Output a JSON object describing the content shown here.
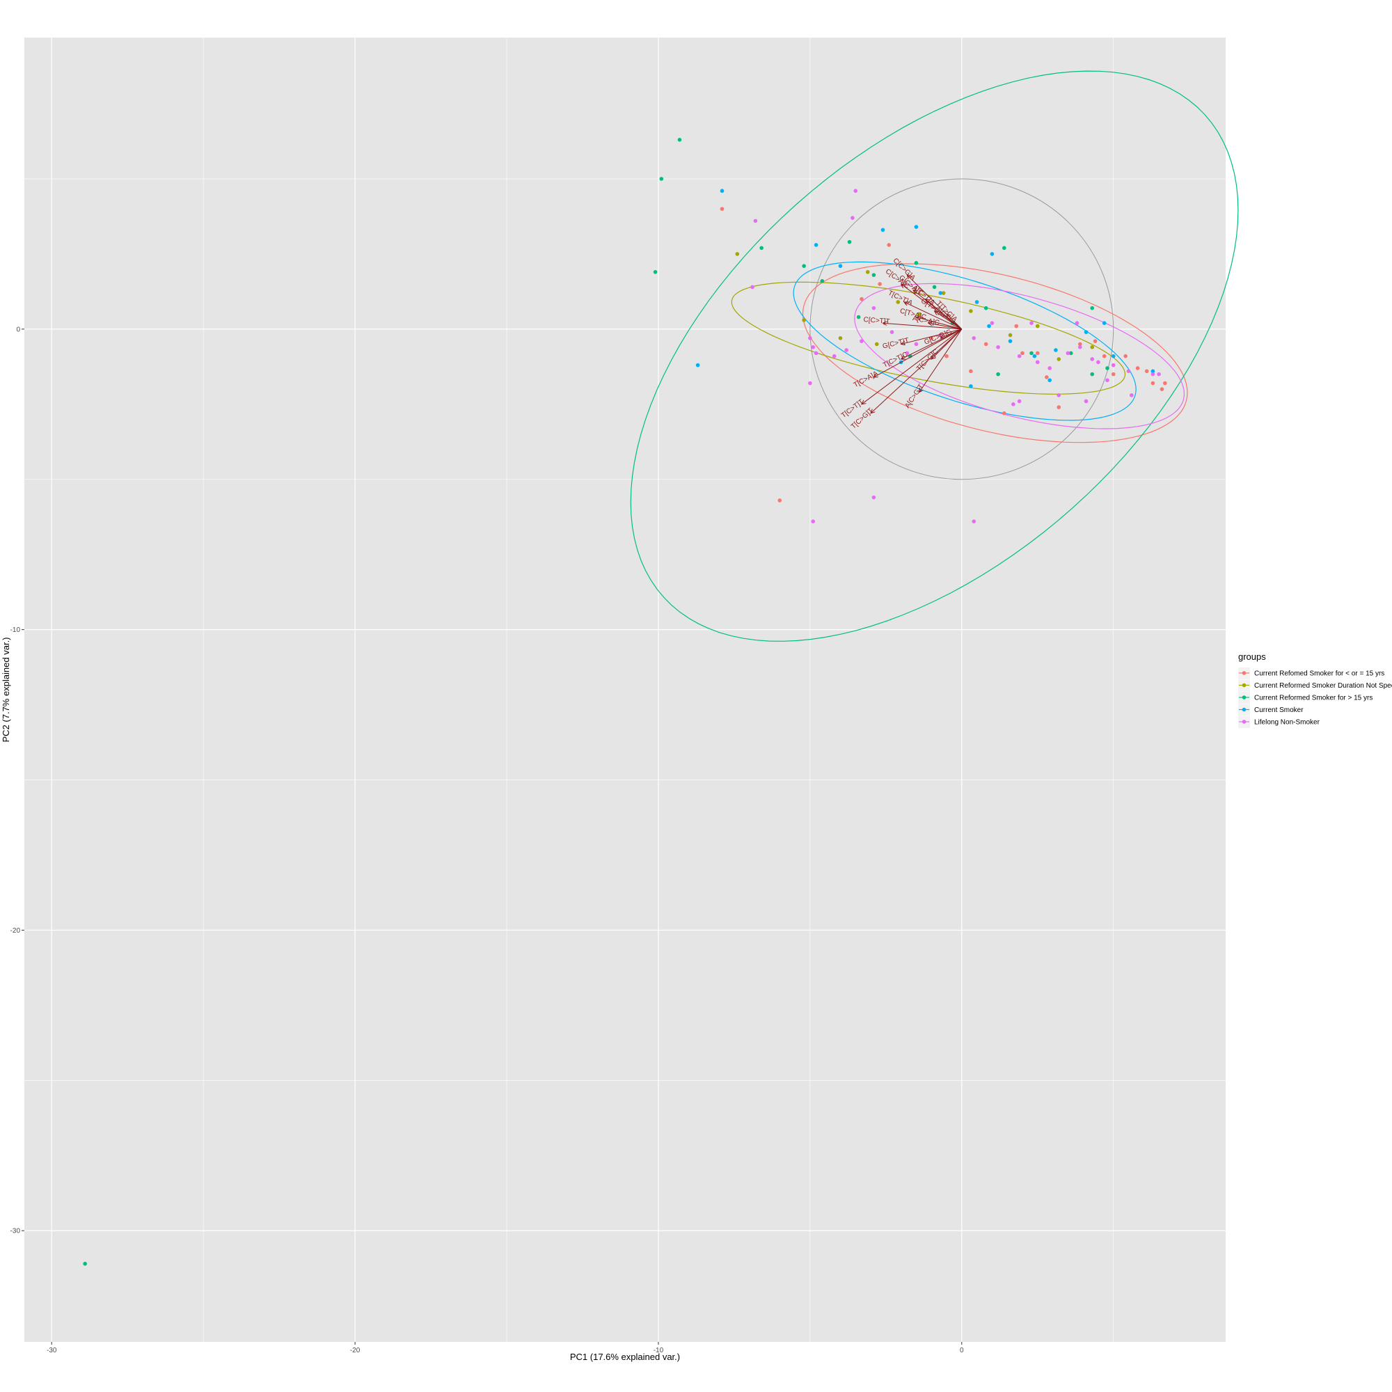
{
  "chart_data": {
    "type": "scatter",
    "title": "",
    "xlabel": "PC1 (17.6% explained var.)",
    "ylabel": "PC2 (7.7% explained var.)",
    "xlim": [
      -30.9,
      8.7
    ],
    "ylim": [
      -33.7,
      9.7
    ],
    "xticks": [
      -30,
      -20,
      -10,
      0
    ],
    "yticks": [
      0,
      -10,
      -20,
      -30
    ],
    "grid": true,
    "legend": {
      "title": "groups",
      "placement": "right"
    },
    "series": [
      {
        "name": "Current Refomed Smoker for < or = 15 yrs",
        "color": "#F8766D",
        "points": [
          [
            -7.9,
            4.0
          ],
          [
            -6.0,
            -5.7
          ],
          [
            -2.4,
            2.8
          ],
          [
            -2.7,
            1.5
          ],
          [
            -0.5,
            -0.9
          ],
          [
            1.4,
            -2.8
          ],
          [
            3.2,
            -2.6
          ],
          [
            4.7,
            -0.9
          ],
          [
            5.8,
            -1.3
          ],
          [
            6.3,
            -1.8
          ],
          [
            6.6,
            -2.0
          ],
          [
            6.7,
            -1.8
          ],
          [
            5.4,
            -0.9
          ],
          [
            3.9,
            -0.5
          ],
          [
            2.5,
            -0.8
          ],
          [
            1.8,
            0.1
          ],
          [
            0.8,
            -0.5
          ],
          [
            -1.0,
            -0.3
          ],
          [
            -3.3,
            1.0
          ],
          [
            0.3,
            -1.4
          ],
          [
            2.8,
            -1.6
          ],
          [
            4.4,
            -0.4
          ],
          [
            5.0,
            -1.5
          ],
          [
            6.1,
            -1.4
          ],
          [
            2.0,
            -0.8
          ]
        ]
      },
      {
        "name": "Current Reformed Smoker Duration Not Specified",
        "color": "#A3A500",
        "points": [
          [
            -7.4,
            2.5
          ],
          [
            -5.2,
            0.3
          ],
          [
            -2.8,
            -0.5
          ],
          [
            -2.1,
            0.9
          ],
          [
            -1.4,
            0.5
          ],
          [
            -0.6,
            1.2
          ],
          [
            0.3,
            0.6
          ],
          [
            1.6,
            -0.2
          ],
          [
            2.5,
            0.1
          ],
          [
            4.3,
            -0.6
          ],
          [
            3.2,
            -1.0
          ],
          [
            -4.0,
            -0.3
          ],
          [
            -3.1,
            1.9
          ]
        ]
      },
      {
        "name": "Current Reformed Smoker for > 15 yrs",
        "color": "#00BF7D",
        "points": [
          [
            -9.3,
            6.3
          ],
          [
            -9.9,
            5.0
          ],
          [
            -10.1,
            1.9
          ],
          [
            -6.6,
            2.7
          ],
          [
            -5.2,
            2.1
          ],
          [
            -4.6,
            1.6
          ],
          [
            -3.7,
            2.9
          ],
          [
            -3.4,
            0.4
          ],
          [
            -2.9,
            1.8
          ],
          [
            -1.5,
            2.2
          ],
          [
            -0.9,
            1.4
          ],
          [
            0.8,
            0.7
          ],
          [
            1.4,
            2.7
          ],
          [
            2.3,
            -0.8
          ],
          [
            4.3,
            -1.5
          ],
          [
            4.8,
            -1.3
          ],
          [
            1.2,
            -1.5
          ],
          [
            -1.7,
            -0.9
          ],
          [
            3.6,
            -0.8
          ],
          [
            -28.9,
            -31.1
          ],
          [
            4.3,
            0.7
          ],
          [
            -0.3,
            0.2
          ]
        ]
      },
      {
        "name": "Current Smoker",
        "color": "#00B0F6",
        "points": [
          [
            -7.9,
            4.6
          ],
          [
            -8.7,
            -1.2
          ],
          [
            -4.8,
            2.8
          ],
          [
            -4.0,
            2.1
          ],
          [
            -2.6,
            3.3
          ],
          [
            -1.5,
            3.4
          ],
          [
            -0.7,
            1.2
          ],
          [
            0.5,
            0.9
          ],
          [
            0.9,
            0.1
          ],
          [
            1.6,
            -0.4
          ],
          [
            2.4,
            -0.9
          ],
          [
            3.1,
            -0.7
          ],
          [
            4.1,
            -0.1
          ],
          [
            5.0,
            -0.9
          ],
          [
            6.3,
            -1.4
          ],
          [
            1.0,
            2.5
          ],
          [
            -2.0,
            -1.1
          ],
          [
            0.3,
            -1.9
          ],
          [
            2.9,
            -1.7
          ],
          [
            4.7,
            0.2
          ]
        ]
      },
      {
        "name": "Lifelong Non-Smoker",
        "color": "#E76BF3",
        "points": [
          [
            -6.8,
            3.6
          ],
          [
            -3.5,
            4.6
          ],
          [
            -3.6,
            3.7
          ],
          [
            -2.9,
            -5.6
          ],
          [
            -6.9,
            1.4
          ],
          [
            -5.0,
            -0.3
          ],
          [
            -4.9,
            -0.6
          ],
          [
            -4.8,
            -0.8
          ],
          [
            -5.0,
            -1.8
          ],
          [
            -4.2,
            -0.9
          ],
          [
            -3.8,
            -0.7
          ],
          [
            -3.3,
            -0.4
          ],
          [
            -2.9,
            0.7
          ],
          [
            -2.3,
            -0.1
          ],
          [
            -1.5,
            -0.5
          ],
          [
            -0.7,
            -0.2
          ],
          [
            0.4,
            -0.3
          ],
          [
            1.2,
            -0.6
          ],
          [
            1.9,
            -0.9
          ],
          [
            2.5,
            -1.1
          ],
          [
            2.9,
            -1.3
          ],
          [
            3.5,
            -0.8
          ],
          [
            3.9,
            -0.6
          ],
          [
            4.3,
            -1.0
          ],
          [
            4.5,
            -1.1
          ],
          [
            5.0,
            -1.2
          ],
          [
            5.5,
            -1.4
          ],
          [
            6.3,
            -1.5
          ],
          [
            6.5,
            -1.5
          ],
          [
            3.2,
            -2.2
          ],
          [
            1.7,
            -2.5
          ],
          [
            1.9,
            -2.4
          ],
          [
            4.1,
            -2.4
          ],
          [
            0.4,
            -6.4
          ],
          [
            -4.9,
            -6.4
          ],
          [
            1.0,
            0.2
          ],
          [
            2.3,
            0.2
          ],
          [
            3.8,
            0.2
          ],
          [
            -1.8,
            -0.8
          ],
          [
            5.6,
            -2.2
          ],
          [
            4.8,
            -1.7
          ]
        ]
      }
    ],
    "ellipses": [
      {
        "series": "Current Refomed Smoker for < or = 15 yrs",
        "center": [
          1.1,
          -0.8
        ],
        "rx": 6.5,
        "ry": 2.6,
        "angle_deg": -14
      },
      {
        "series": "Current Reformed Smoker Duration Not Specified",
        "center": [
          -1.1,
          -0.3
        ],
        "rx": 6.6,
        "ry": 1.4,
        "angle_deg": -11
      },
      {
        "series": "Current Reformed Smoker for > 15 yrs",
        "center": [
          -0.9,
          -0.9
        ],
        "rx": 12.0,
        "ry": 6.8,
        "angle_deg": 42
      },
      {
        "series": "Current Smoker",
        "center": [
          0.1,
          -0.4
        ],
        "rx": 5.9,
        "ry": 2.0,
        "angle_deg": -18
      },
      {
        "series": "Lifelong Non-Smoker",
        "center": [
          1.9,
          -0.9
        ],
        "rx": 5.6,
        "ry": 2.0,
        "angle_deg": -15
      }
    ],
    "circle": {
      "center": [
        0,
        0
      ],
      "r": 5.0,
      "color": "#999999"
    },
    "loading_color": "#8B1A1A",
    "loadings": [
      {
        "label": "C[C>T]T",
        "x": -2.6,
        "y": 0.2
      },
      {
        "label": "G[C>T]T",
        "x": -2.0,
        "y": -0.5
      },
      {
        "label": "T[C>T]C",
        "x": -2.0,
        "y": -1.0
      },
      {
        "label": "T[C>G]C",
        "x": -1.0,
        "y": -1.0
      },
      {
        "label": "T[C>A]A",
        "x": -2.9,
        "y": -1.6
      },
      {
        "label": "T[C>T]T",
        "x": -3.3,
        "y": -2.5
      },
      {
        "label": "T[C>G]T",
        "x": -3.0,
        "y": -2.8
      },
      {
        "label": "A[C>G]T",
        "x": -1.4,
        "y": -2.1
      },
      {
        "label": "C[C>A]C",
        "x": -2.0,
        "y": 1.5
      },
      {
        "label": "C[C>G]A",
        "x": -1.8,
        "y": 1.8
      },
      {
        "label": "G[C>A]T",
        "x": -1.6,
        "y": 1.3
      },
      {
        "label": "A[C>T]A",
        "x": -1.2,
        "y": 1.0
      },
      {
        "label": "G[T>C]G",
        "x": -0.9,
        "y": 0.6
      },
      {
        "label": "T[C>T]A",
        "x": -1.9,
        "y": 0.9
      },
      {
        "label": "C[T>A]C",
        "x": -1.5,
        "y": 0.4
      },
      {
        "label": "G[C>G]G",
        "x": -0.7,
        "y": -0.3
      },
      {
        "label": "A[C>A]C",
        "x": -1.1,
        "y": 0.2
      },
      {
        "label": "T[T>C]A",
        "x": -0.5,
        "y": 0.5
      }
    ]
  }
}
